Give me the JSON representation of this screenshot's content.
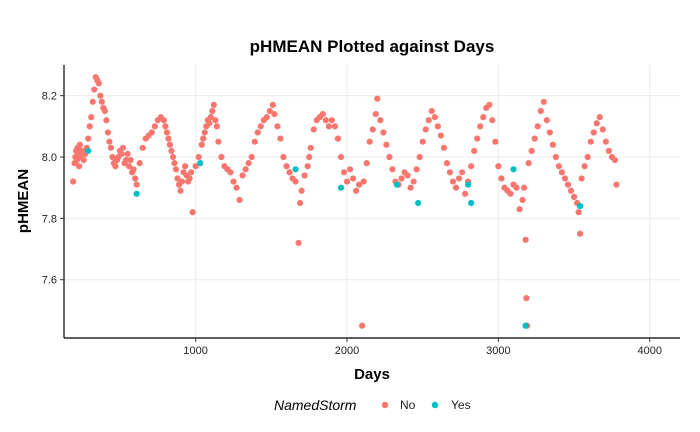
{
  "chart_data": {
    "type": "scatter",
    "title": "pHMEAN Plotted against Days",
    "xlabel": "Days",
    "ylabel": "pHMEAN",
    "xlim": [
      130,
      4200
    ],
    "ylim": [
      7.41,
      8.3
    ],
    "x_ticks": [
      1000,
      2000,
      3000,
      4000
    ],
    "x_tick_labels": [
      "1000",
      "2000",
      "3000",
      "4000"
    ],
    "y_ticks": [
      7.6,
      7.8,
      8.0,
      8.2
    ],
    "y_tick_labels": [
      "7.6",
      "7.8",
      "8.0",
      "8.2"
    ],
    "grid": true,
    "legend": {
      "title": "NamedStorm",
      "position": "bottom",
      "entries": [
        {
          "label": "No",
          "color": "#F8766D"
        },
        {
          "label": "Yes",
          "color": "#00BFC4"
        }
      ]
    },
    "series": [
      {
        "name": "No",
        "color": "#F8766D",
        "points": [
          [
            190,
            7.92
          ],
          [
            200,
            7.98
          ],
          [
            205,
            8.0
          ],
          [
            210,
            8.02
          ],
          [
            215,
            7.99
          ],
          [
            220,
            8.03
          ],
          [
            225,
            8.01
          ],
          [
            230,
            7.97
          ],
          [
            235,
            8.04
          ],
          [
            240,
            8.0
          ],
          [
            250,
            8.02
          ],
          [
            260,
            7.99
          ],
          [
            270,
            8.01
          ],
          [
            280,
            8.03
          ],
          [
            290,
            8.06
          ],
          [
            300,
            8.1
          ],
          [
            310,
            8.13
          ],
          [
            320,
            8.18
          ],
          [
            330,
            8.22
          ],
          [
            340,
            8.26
          ],
          [
            350,
            8.25
          ],
          [
            360,
            8.24
          ],
          [
            370,
            8.2
          ],
          [
            380,
            8.18
          ],
          [
            390,
            8.16
          ],
          [
            400,
            8.15
          ],
          [
            410,
            8.12
          ],
          [
            420,
            8.08
          ],
          [
            430,
            8.05
          ],
          [
            440,
            8.03
          ],
          [
            450,
            8.0
          ],
          [
            460,
            7.98
          ],
          [
            470,
            7.97
          ],
          [
            480,
            7.99
          ],
          [
            490,
            8.0
          ],
          [
            500,
            8.02
          ],
          [
            510,
            8.01
          ],
          [
            520,
            8.03
          ],
          [
            530,
            7.98
          ],
          [
            540,
            7.99
          ],
          [
            550,
            8.01
          ],
          [
            560,
            7.97
          ],
          [
            570,
            7.99
          ],
          [
            580,
            7.95
          ],
          [
            590,
            7.96
          ],
          [
            600,
            7.93
          ],
          [
            610,
            7.91
          ],
          [
            630,
            7.98
          ],
          [
            650,
            8.03
          ],
          [
            670,
            8.06
          ],
          [
            690,
            8.07
          ],
          [
            710,
            8.08
          ],
          [
            730,
            8.1
          ],
          [
            750,
            8.12
          ],
          [
            770,
            8.13
          ],
          [
            790,
            8.12
          ],
          [
            800,
            8.1
          ],
          [
            810,
            8.08
          ],
          [
            820,
            8.06
          ],
          [
            830,
            8.04
          ],
          [
            840,
            8.02
          ],
          [
            850,
            8.0
          ],
          [
            860,
            7.98
          ],
          [
            870,
            7.96
          ],
          [
            880,
            7.93
          ],
          [
            890,
            7.91
          ],
          [
            900,
            7.89
          ],
          [
            910,
            7.92
          ],
          [
            920,
            7.95
          ],
          [
            930,
            7.97
          ],
          [
            940,
            7.94
          ],
          [
            950,
            7.92
          ],
          [
            960,
            7.93
          ],
          [
            970,
            7.95
          ],
          [
            980,
            7.82
          ],
          [
            1000,
            7.97
          ],
          [
            1020,
            8.0
          ],
          [
            1040,
            8.04
          ],
          [
            1050,
            8.06
          ],
          [
            1060,
            8.08
          ],
          [
            1070,
            8.1
          ],
          [
            1080,
            8.12
          ],
          [
            1090,
            8.11
          ],
          [
            1100,
            8.13
          ],
          [
            1110,
            8.15
          ],
          [
            1120,
            8.17
          ],
          [
            1130,
            8.12
          ],
          [
            1140,
            8.1
          ],
          [
            1150,
            8.05
          ],
          [
            1170,
            8.0
          ],
          [
            1190,
            7.97
          ],
          [
            1210,
            7.96
          ],
          [
            1230,
            7.95
          ],
          [
            1250,
            7.92
          ],
          [
            1270,
            7.9
          ],
          [
            1290,
            7.86
          ],
          [
            1310,
            7.94
          ],
          [
            1330,
            7.96
          ],
          [
            1350,
            7.98
          ],
          [
            1370,
            8.0
          ],
          [
            1390,
            8.05
          ],
          [
            1410,
            8.08
          ],
          [
            1430,
            8.1
          ],
          [
            1450,
            8.12
          ],
          [
            1470,
            8.13
          ],
          [
            1490,
            8.15
          ],
          [
            1510,
            8.17
          ],
          [
            1520,
            8.14
          ],
          [
            1540,
            8.1
          ],
          [
            1560,
            8.06
          ],
          [
            1580,
            8.0
          ],
          [
            1600,
            7.97
          ],
          [
            1620,
            7.95
          ],
          [
            1640,
            7.93
          ],
          [
            1660,
            7.92
          ],
          [
            1680,
            7.72
          ],
          [
            1690,
            7.85
          ],
          [
            1700,
            7.89
          ],
          [
            1720,
            7.94
          ],
          [
            1740,
            7.97
          ],
          [
            1750,
            8.0
          ],
          [
            1760,
            8.03
          ],
          [
            1780,
            8.09
          ],
          [
            1800,
            8.12
          ],
          [
            1820,
            8.13
          ],
          [
            1840,
            8.14
          ],
          [
            1860,
            8.12
          ],
          [
            1880,
            8.1
          ],
          [
            1900,
            8.12
          ],
          [
            1920,
            8.1
          ],
          [
            1940,
            8.06
          ],
          [
            1960,
            8.0
          ],
          [
            1980,
            7.95
          ],
          [
            2000,
            7.92
          ],
          [
            2020,
            7.96
          ],
          [
            2040,
            7.93
          ],
          [
            2060,
            7.89
          ],
          [
            2080,
            7.91
          ],
          [
            2100,
            7.45
          ],
          [
            2110,
            7.92
          ],
          [
            2130,
            7.98
          ],
          [
            2150,
            8.05
          ],
          [
            2170,
            8.09
          ],
          [
            2190,
            8.14
          ],
          [
            2200,
            8.19
          ],
          [
            2220,
            8.12
          ],
          [
            2240,
            8.08
          ],
          [
            2260,
            8.04
          ],
          [
            2280,
            8.0
          ],
          [
            2300,
            7.96
          ],
          [
            2320,
            7.92
          ],
          [
            2340,
            7.91
          ],
          [
            2360,
            7.93
          ],
          [
            2380,
            7.95
          ],
          [
            2400,
            7.94
          ],
          [
            2420,
            7.9
          ],
          [
            2440,
            7.92
          ],
          [
            2460,
            7.96
          ],
          [
            2480,
            8.0
          ],
          [
            2500,
            8.05
          ],
          [
            2520,
            8.09
          ],
          [
            2540,
            8.12
          ],
          [
            2560,
            8.15
          ],
          [
            2580,
            8.13
          ],
          [
            2600,
            8.1
          ],
          [
            2620,
            8.07
          ],
          [
            2640,
            8.03
          ],
          [
            2660,
            7.98
          ],
          [
            2680,
            7.95
          ],
          [
            2700,
            7.92
          ],
          [
            2720,
            7.9
          ],
          [
            2740,
            7.93
          ],
          [
            2760,
            7.95
          ],
          [
            2780,
            7.88
          ],
          [
            2800,
            7.92
          ],
          [
            2820,
            7.97
          ],
          [
            2840,
            8.02
          ],
          [
            2860,
            8.06
          ],
          [
            2880,
            8.1
          ],
          [
            2900,
            8.13
          ],
          [
            2920,
            8.16
          ],
          [
            2940,
            8.17
          ],
          [
            2960,
            8.12
          ],
          [
            2980,
            8.05
          ],
          [
            3000,
            7.97
          ],
          [
            3020,
            7.93
          ],
          [
            3040,
            7.9
          ],
          [
            3060,
            7.89
          ],
          [
            3080,
            7.88
          ],
          [
            3100,
            7.91
          ],
          [
            3120,
            7.9
          ],
          [
            3140,
            7.83
          ],
          [
            3160,
            7.86
          ],
          [
            3170,
            7.9
          ],
          [
            3180,
            7.73
          ],
          [
            3185,
            7.54
          ],
          [
            3190,
            7.45
          ],
          [
            3200,
            7.98
          ],
          [
            3220,
            8.02
          ],
          [
            3240,
            8.06
          ],
          [
            3260,
            8.1
          ],
          [
            3280,
            8.15
          ],
          [
            3300,
            8.18
          ],
          [
            3320,
            8.12
          ],
          [
            3340,
            8.08
          ],
          [
            3360,
            8.04
          ],
          [
            3380,
            8.0
          ],
          [
            3400,
            7.97
          ],
          [
            3420,
            7.95
          ],
          [
            3440,
            7.93
          ],
          [
            3460,
            7.91
          ],
          [
            3480,
            7.89
          ],
          [
            3500,
            7.87
          ],
          [
            3520,
            7.85
          ],
          [
            3530,
            7.82
          ],
          [
            3540,
            7.75
          ],
          [
            3550,
            7.93
          ],
          [
            3570,
            7.97
          ],
          [
            3590,
            8.0
          ],
          [
            3610,
            8.05
          ],
          [
            3630,
            8.08
          ],
          [
            3650,
            8.11
          ],
          [
            3670,
            8.13
          ],
          [
            3690,
            8.09
          ],
          [
            3710,
            8.05
          ],
          [
            3730,
            8.02
          ],
          [
            3750,
            8.0
          ],
          [
            3770,
            7.99
          ],
          [
            3780,
            7.91
          ]
        ]
      },
      {
        "name": "Yes",
        "color": "#00BFC4",
        "points": [
          [
            290,
            8.02
          ],
          [
            610,
            7.88
          ],
          [
            1030,
            7.98
          ],
          [
            1660,
            7.96
          ],
          [
            1960,
            7.9
          ],
          [
            2330,
            7.91
          ],
          [
            2470,
            7.85
          ],
          [
            2800,
            7.91
          ],
          [
            2820,
            7.85
          ],
          [
            3100,
            7.96
          ],
          [
            3180,
            7.45
          ],
          [
            3540,
            7.84
          ]
        ]
      }
    ]
  }
}
